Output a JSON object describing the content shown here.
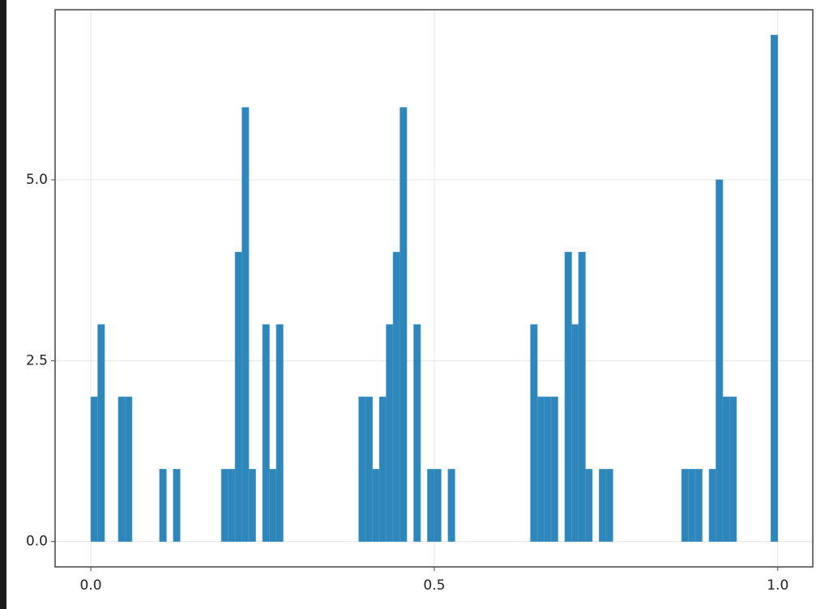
{
  "chart_data": {
    "type": "histogram",
    "bins": [
      0,
      0.01,
      0.02,
      0.03,
      0.04,
      0.05,
      0.06,
      0.07,
      0.08,
      0.09,
      0.1,
      0.11,
      0.12,
      0.13,
      0.14,
      0.15,
      0.16,
      0.17,
      0.18,
      0.19,
      0.2,
      0.21,
      0.22,
      0.23,
      0.24,
      0.25,
      0.26,
      0.27,
      0.28,
      0.29,
      0.3,
      0.31,
      0.32,
      0.33,
      0.34,
      0.35,
      0.36,
      0.37,
      0.38,
      0.39,
      0.4,
      0.41,
      0.42,
      0.43,
      0.44,
      0.45,
      0.46,
      0.47,
      0.48,
      0.49,
      0.5,
      0.51,
      0.52,
      0.53,
      0.54,
      0.55,
      0.56,
      0.57,
      0.58,
      0.59,
      0.6,
      0.61,
      0.62,
      0.63,
      0.64,
      0.65,
      0.66,
      0.67,
      0.68,
      0.69,
      0.7,
      0.71,
      0.72,
      0.73,
      0.74,
      0.75,
      0.76,
      0.77,
      0.78,
      0.79,
      0.8,
      0.81,
      0.82,
      0.83,
      0.84,
      0.85,
      0.86,
      0.87,
      0.88,
      0.89,
      0.9,
      0.91,
      0.92,
      0.93,
      0.94,
      0.95,
      0.96,
      0.97,
      0.98,
      0.99,
      1
    ],
    "values": [
      2,
      3,
      0,
      0,
      2,
      2,
      0,
      0,
      0,
      0,
      1,
      0,
      1,
      0,
      0,
      0,
      0,
      0,
      0,
      1,
      1,
      4,
      6,
      1,
      0,
      3,
      1,
      3,
      0,
      0,
      0,
      0,
      0,
      0,
      0,
      0,
      0,
      0,
      0,
      2,
      2,
      1,
      2,
      3,
      4,
      6,
      0,
      3,
      0,
      1,
      1,
      0,
      1,
      0,
      0,
      0,
      0,
      0,
      0,
      0,
      0,
      0,
      0,
      0,
      3,
      2,
      2,
      2,
      0,
      4,
      3,
      4,
      1,
      0,
      1,
      1,
      0,
      0,
      0,
      0,
      0,
      0,
      0,
      0,
      0,
      0,
      1,
      1,
      1,
      0,
      1,
      5,
      2,
      2,
      0,
      0,
      0,
      0,
      0,
      7
    ],
    "color": "#2e86ba",
    "xlim": [
      -0.052,
      1.051
    ],
    "ylim": [
      -0.35,
      7.35
    ],
    "xticks": [
      {
        "value": 0,
        "label": "0.0"
      },
      0.5,
      {
        "value": 1,
        "label": "1.0"
      }
    ],
    "yticks": [
      {
        "value": 0,
        "label": "0.0"
      },
      2.5,
      {
        "value": 5,
        "label": "5.0"
      }
    ],
    "grid": true
  }
}
